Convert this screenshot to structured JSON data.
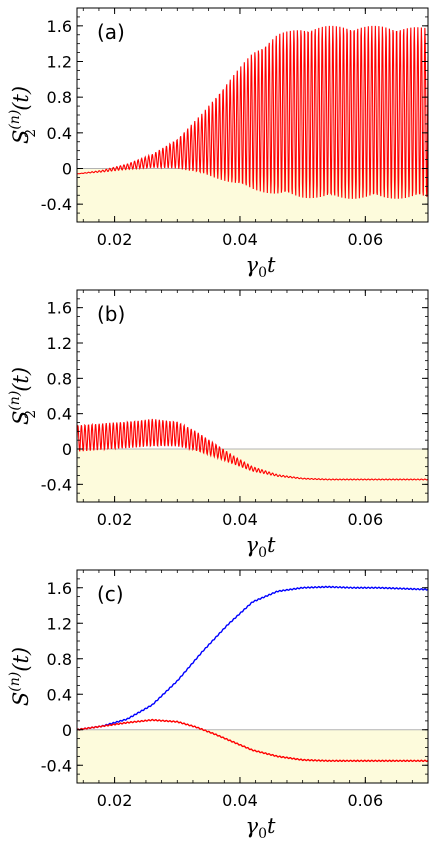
{
  "colors": {
    "negative_shading": "#fdfbdc",
    "red_series": "#ff0000",
    "blue_series": "#0000ff",
    "zero_line": "#b3b3b3",
    "axis": "#000000"
  },
  "chart_data": [
    {
      "type": "line",
      "panel_label": "(a)",
      "xlabel": "γ0t",
      "ylabel": "S2(n)(t)",
      "xlim": [
        0.014,
        0.07
      ],
      "ylim": [
        -0.6,
        1.8
      ],
      "xticks": [
        0.02,
        0.04,
        0.06
      ],
      "xtick_labels": [
        "0.02",
        "0.04",
        "0.06"
      ],
      "yticks": [
        -0.4,
        0,
        0.4,
        0.8,
        1.2,
        1.6
      ],
      "ytick_labels": [
        "-0.4",
        "0",
        "0.4",
        "0.8",
        "1.2",
        "1.6"
      ],
      "shaded_region": "y < 0",
      "series": [
        {
          "color": "red",
          "style": "rapid oscillation",
          "upper_envelope": {
            "x": [
              0.014,
              0.018,
              0.022,
              0.026,
              0.03,
              0.034,
              0.038,
              0.042,
              0.046,
              0.05,
              0.054,
              0.058,
              0.062,
              0.066,
              0.07
            ],
            "y": [
              -0.06,
              -0.02,
              0.05,
              0.16,
              0.33,
              0.62,
              0.97,
              1.3,
              1.51,
              1.58,
              1.6,
              1.6,
              1.6,
              1.59,
              1.58
            ]
          },
          "lower_envelope": {
            "x": [
              0.014,
              0.018,
              0.022,
              0.026,
              0.03,
              0.034,
              0.038,
              0.042,
              0.046,
              0.05,
              0.054,
              0.058,
              0.062,
              0.066,
              0.07
            ],
            "y": [
              -0.06,
              -0.04,
              -0.01,
              0.01,
              0.0,
              -0.06,
              -0.15,
              -0.24,
              -0.3,
              -0.33,
              -0.34,
              -0.34,
              -0.34,
              -0.34,
              -0.34
            ]
          }
        }
      ]
    },
    {
      "type": "line",
      "panel_label": "(b)",
      "xlabel": "γ0t",
      "ylabel": "S2(n)(t)",
      "xlim": [
        0.014,
        0.07
      ],
      "ylim": [
        -0.6,
        1.8
      ],
      "xticks": [
        0.02,
        0.04,
        0.06
      ],
      "xtick_labels": [
        "0.02",
        "0.04",
        "0.06"
      ],
      "yticks": [
        -0.4,
        0,
        0.4,
        0.8,
        1.2,
        1.6
      ],
      "ytick_labels": [
        "-0.4",
        "0",
        "0.4",
        "0.8",
        "1.2",
        "1.6"
      ],
      "shaded_region": "y < 0",
      "series": [
        {
          "color": "red",
          "style": "rapid oscillation",
          "upper_envelope": {
            "x": [
              0.014,
              0.018,
              0.022,
              0.026,
              0.03,
              0.033,
              0.036,
              0.039,
              0.042,
              0.046,
              0.05,
              0.054,
              0.058,
              0.062,
              0.066,
              0.07
            ],
            "y": [
              0.27,
              0.29,
              0.31,
              0.34,
              0.31,
              0.2,
              0.06,
              -0.08,
              -0.2,
              -0.29,
              -0.33,
              -0.34,
              -0.34,
              -0.34,
              -0.34,
              -0.34
            ]
          },
          "lower_envelope": {
            "x": [
              0.014,
              0.018,
              0.022,
              0.026,
              0.03,
              0.033,
              0.036,
              0.039,
              0.042,
              0.046,
              0.05,
              0.054,
              0.058,
              0.062,
              0.066,
              0.07
            ],
            "y": [
              -0.03,
              -0.01,
              0.01,
              0.03,
              0.03,
              -0.02,
              -0.09,
              -0.17,
              -0.25,
              -0.31,
              -0.34,
              -0.35,
              -0.35,
              -0.35,
              -0.35,
              -0.35
            ]
          }
        }
      ]
    },
    {
      "type": "line",
      "panel_label": "(c)",
      "xlabel": "γ0t",
      "ylabel": "S(n)(t)",
      "xlim": [
        0.014,
        0.07
      ],
      "ylim": [
        -0.6,
        1.8
      ],
      "xticks": [
        0.02,
        0.04,
        0.06
      ],
      "xtick_labels": [
        "0.02",
        "0.04",
        "0.06"
      ],
      "yticks": [
        -0.4,
        0,
        0.4,
        0.8,
        1.2,
        1.6
      ],
      "ytick_labels": [
        "-0.4",
        "0",
        "0.4",
        "0.8",
        "1.2",
        "1.6"
      ],
      "shaded_region": "y < 0",
      "series": [
        {
          "color": "blue",
          "x": [
            0.014,
            0.018,
            0.022,
            0.026,
            0.03,
            0.034,
            0.038,
            0.042,
            0.046,
            0.05,
            0.054,
            0.058,
            0.062,
            0.066,
            0.07
          ],
          "y": [
            0.0,
            0.04,
            0.12,
            0.28,
            0.55,
            0.88,
            1.18,
            1.44,
            1.56,
            1.6,
            1.61,
            1.6,
            1.6,
            1.59,
            1.58
          ]
        },
        {
          "color": "red",
          "x": [
            0.014,
            0.018,
            0.022,
            0.026,
            0.03,
            0.033,
            0.036,
            0.039,
            0.042,
            0.046,
            0.05,
            0.054,
            0.058,
            0.062,
            0.066,
            0.07
          ],
          "y": [
            0.0,
            0.04,
            0.08,
            0.11,
            0.09,
            0.03,
            -0.05,
            -0.14,
            -0.23,
            -0.3,
            -0.34,
            -0.35,
            -0.35,
            -0.35,
            -0.35,
            -0.35
          ]
        }
      ]
    }
  ]
}
